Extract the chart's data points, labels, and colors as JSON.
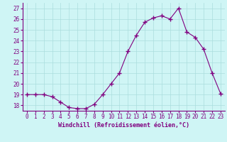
{
  "x": [
    0,
    1,
    2,
    3,
    4,
    5,
    6,
    7,
    8,
    9,
    10,
    11,
    12,
    13,
    14,
    15,
    16,
    17,
    18,
    19,
    20,
    21,
    22,
    23
  ],
  "y": [
    19,
    19,
    19,
    18.8,
    18.3,
    17.8,
    17.7,
    17.7,
    18.1,
    19.0,
    20.0,
    21.0,
    23.0,
    24.5,
    25.7,
    26.1,
    26.3,
    26.0,
    27.0,
    24.8,
    24.3,
    23.2,
    21.0,
    19.1
  ],
  "line_color": "#800080",
  "marker": "+",
  "marker_size": 4,
  "bg_color": "#cff5f5",
  "grid_color": "#aadddd",
  "xlabel": "Windchill (Refroidissement éolien,°C)",
  "xlabel_color": "#800080",
  "tick_color": "#800080",
  "axis_color": "#800080",
  "ylim": [
    17.5,
    27.5
  ],
  "xlim": [
    -0.5,
    23.5
  ],
  "yticks": [
    18,
    19,
    20,
    21,
    22,
    23,
    24,
    25,
    26,
    27
  ],
  "xticks": [
    0,
    1,
    2,
    3,
    4,
    5,
    6,
    7,
    8,
    9,
    10,
    11,
    12,
    13,
    14,
    15,
    16,
    17,
    18,
    19,
    20,
    21,
    22,
    23
  ],
  "tick_fontsize": 5.5,
  "xlabel_fontsize": 6.0
}
